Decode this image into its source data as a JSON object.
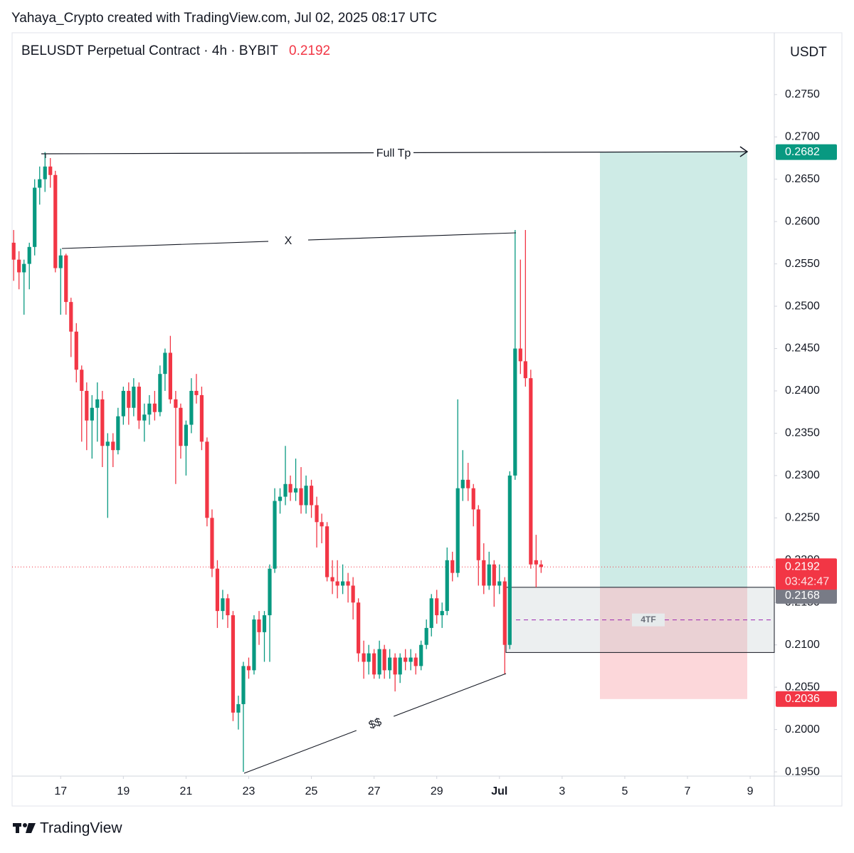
{
  "header": {
    "credit": "Yahaya_Crypto created with TradingView.com, Jul 02, 2025 08:17 UTC",
    "brand": "TradingView"
  },
  "chart_data": {
    "type": "candlestick",
    "title": "BELUSDT Perpetual Contract · 4h · BYBIT",
    "last_price": 0.2192,
    "currency": "USDT",
    "up_color": "#089981",
    "down_color": "#f23645",
    "x": [
      15.5,
      15.67,
      15.83,
      16,
      16.17,
      16.33,
      16.5,
      16.67,
      16.83,
      17,
      17.17,
      17.33,
      17.5,
      17.67,
      17.83,
      18,
      18.17,
      18.33,
      18.5,
      18.67,
      18.83,
      19,
      19.17,
      19.33,
      19.5,
      19.67,
      19.83,
      20,
      20.17,
      20.33,
      20.5,
      20.67,
      20.83,
      21,
      21.17,
      21.33,
      21.5,
      21.67,
      21.83,
      22,
      22.17,
      22.33,
      22.5,
      22.67,
      22.83,
      23,
      23.17,
      23.33,
      23.5,
      23.67,
      23.83,
      24,
      24.17,
      24.33,
      24.5,
      24.67,
      24.83,
      25,
      25.17,
      25.33,
      25.5,
      25.67,
      25.83,
      26,
      26.17,
      26.33,
      26.5,
      26.67,
      26.83,
      27,
      27.17,
      27.33,
      27.5,
      27.67,
      27.83,
      28,
      28.17,
      28.33,
      28.5,
      28.67,
      28.83,
      29,
      29.17,
      29.33,
      29.5,
      29.67,
      29.83,
      30,
      30.17,
      30.33,
      30.5,
      30.67,
      30.83,
      31,
      31.17,
      31.33,
      31.5,
      31.67,
      31.83,
      32,
      32.17,
      32.33
    ],
    "open": [
      0.2575,
      0.2555,
      0.254,
      0.255,
      0.257,
      0.264,
      0.265,
      0.2665,
      0.2655,
      0.2545,
      0.256,
      0.2505,
      0.247,
      0.2425,
      0.24,
      0.2365,
      0.238,
      0.239,
      0.2335,
      0.234,
      0.233,
      0.237,
      0.24,
      0.238,
      0.2405,
      0.2365,
      0.2372,
      0.2385,
      0.2375,
      0.242,
      0.2445,
      0.239,
      0.238,
      0.2335,
      0.236,
      0.24,
      0.2395,
      0.234,
      0.225,
      0.219,
      0.214,
      0.2155,
      0.2135,
      0.202,
      0.203,
      0.2075,
      0.207,
      0.213,
      0.2115,
      0.2135,
      0.219,
      0.227,
      0.2275,
      0.229,
      0.228,
      0.2285,
      0.2265,
      0.2288,
      0.2265,
      0.2245,
      0.224,
      0.218,
      0.2175,
      0.217,
      0.2175,
      0.217,
      0.215,
      0.209,
      0.208,
      0.209,
      0.2065,
      0.2095,
      0.207,
      0.2085,
      0.2065,
      0.2085,
      0.208,
      0.2085,
      0.2075,
      0.21,
      0.212,
      0.2155,
      0.2135,
      0.214,
      0.22,
      0.2185,
      0.2285,
      0.2295,
      0.2285,
      0.226,
      0.22,
      0.217,
      0.2195,
      0.217,
      0.2175,
      0.21,
      0.23,
      0.245,
      0.2435,
      0.2415,
      0.22,
      0.2195
    ],
    "high": [
      0.259,
      0.2565,
      0.2555,
      0.2575,
      0.265,
      0.2665,
      0.2682,
      0.2675,
      0.266,
      0.2568,
      0.2562,
      0.251,
      0.248,
      0.243,
      0.241,
      0.2395,
      0.241,
      0.24,
      0.235,
      0.235,
      0.238,
      0.2405,
      0.241,
      0.2415,
      0.241,
      0.2385,
      0.2395,
      0.24,
      0.243,
      0.245,
      0.2465,
      0.24,
      0.2385,
      0.2365,
      0.2415,
      0.242,
      0.2405,
      0.2345,
      0.226,
      0.22,
      0.2165,
      0.216,
      0.214,
      0.204,
      0.208,
      0.2085,
      0.2135,
      0.214,
      0.214,
      0.2195,
      0.2285,
      0.2285,
      0.2335,
      0.23,
      0.232,
      0.231,
      0.23,
      0.2295,
      0.2275,
      0.2255,
      0.2245,
      0.22,
      0.22,
      0.2195,
      0.2185,
      0.218,
      0.2155,
      0.2105,
      0.21,
      0.2095,
      0.2105,
      0.21,
      0.2095,
      0.209,
      0.209,
      0.2095,
      0.2095,
      0.209,
      0.2105,
      0.213,
      0.216,
      0.2165,
      0.215,
      0.2215,
      0.221,
      0.239,
      0.233,
      0.2315,
      0.229,
      0.2265,
      0.222,
      0.221,
      0.22,
      0.2195,
      0.218,
      0.2305,
      0.259,
      0.2555,
      0.259,
      0.2425,
      0.223,
      0.22
    ],
    "low": [
      0.253,
      0.252,
      0.249,
      0.252,
      0.256,
      0.262,
      0.2635,
      0.264,
      0.254,
      0.249,
      0.249,
      0.244,
      0.241,
      0.234,
      0.233,
      0.232,
      0.234,
      0.231,
      0.225,
      0.231,
      0.2325,
      0.236,
      0.236,
      0.237,
      0.2355,
      0.234,
      0.236,
      0.2365,
      0.237,
      0.24,
      0.2385,
      0.229,
      0.232,
      0.23,
      0.235,
      0.2385,
      0.233,
      0.224,
      0.218,
      0.212,
      0.213,
      0.212,
      0.201,
      0.2,
      0.195,
      0.206,
      0.2065,
      0.21,
      0.208,
      0.208,
      0.2185,
      0.2255,
      0.2265,
      0.227,
      0.227,
      0.2255,
      0.2255,
      0.225,
      0.2215,
      0.222,
      0.2175,
      0.216,
      0.2155,
      0.216,
      0.215,
      0.213,
      0.208,
      0.206,
      0.2065,
      0.206,
      0.206,
      0.206,
      0.206,
      0.2045,
      0.2055,
      0.207,
      0.207,
      0.2065,
      0.207,
      0.2095,
      0.211,
      0.2125,
      0.212,
      0.2135,
      0.2175,
      0.218,
      0.227,
      0.227,
      0.224,
      0.217,
      0.216,
      0.2165,
      0.2145,
      0.216,
      0.2065,
      0.2095,
      0.2295,
      0.242,
      0.2405,
      0.219,
      0.2168,
      0.2185
    ],
    "close": [
      0.2555,
      0.254,
      0.255,
      0.257,
      0.264,
      0.265,
      0.2665,
      0.2655,
      0.2545,
      0.256,
      0.2505,
      0.247,
      0.2425,
      0.24,
      0.2365,
      0.238,
      0.239,
      0.2335,
      0.234,
      0.233,
      0.237,
      0.24,
      0.238,
      0.2405,
      0.2365,
      0.2372,
      0.2385,
      0.2375,
      0.242,
      0.2445,
      0.239,
      0.238,
      0.2335,
      0.236,
      0.24,
      0.2395,
      0.234,
      0.225,
      0.219,
      0.214,
      0.2155,
      0.2135,
      0.202,
      0.203,
      0.2075,
      0.207,
      0.213,
      0.2115,
      0.2135,
      0.219,
      0.227,
      0.2275,
      0.229,
      0.228,
      0.2285,
      0.2265,
      0.2288,
      0.2265,
      0.2245,
      0.224,
      0.218,
      0.2175,
      0.217,
      0.2175,
      0.217,
      0.215,
      0.209,
      0.208,
      0.209,
      0.2065,
      0.2095,
      0.207,
      0.2085,
      0.2065,
      0.2085,
      0.208,
      0.2085,
      0.2075,
      0.21,
      0.212,
      0.2155,
      0.2135,
      0.214,
      0.22,
      0.2185,
      0.2285,
      0.2295,
      0.2285,
      0.226,
      0.22,
      0.217,
      0.2195,
      0.217,
      0.2175,
      0.21,
      0.23,
      0.245,
      0.2435,
      0.2415,
      0.2195,
      0.2195,
      0.2192
    ],
    "xlim": [
      15.45,
      39.77
    ],
    "xticks": [
      17,
      19,
      21,
      23,
      25,
      27,
      29,
      {
        "value": 31,
        "label": "Jul"
      },
      {
        "value": 33,
        "label": "3"
      },
      {
        "value": 35,
        "label": "5"
      },
      {
        "value": 37,
        "label": "7"
      },
      {
        "value": 39,
        "label": "9"
      }
    ],
    "ylim": [
      0.1945,
      0.2823
    ],
    "yticks": [
      {
        "value": 0.195,
        "label": "0.1950"
      },
      {
        "value": 0.2,
        "label": "0.2000"
      },
      {
        "value": 0.205,
        "label": "0.2050"
      },
      {
        "value": 0.21,
        "label": "0.2100"
      },
      {
        "value": 0.215,
        "label": "0.2150"
      },
      {
        "value": 0.22,
        "label": "0.2200"
      },
      {
        "value": 0.225,
        "label": "0.2250"
      },
      {
        "value": 0.23,
        "label": "0.2300"
      },
      {
        "value": 0.235,
        "label": "0.2350"
      },
      {
        "value": 0.24,
        "label": "0.2400"
      },
      {
        "value": 0.245,
        "label": "0.2450"
      },
      {
        "value": 0.25,
        "label": "0.2500"
      },
      {
        "value": 0.255,
        "label": "0.2550"
      },
      {
        "value": 0.26,
        "label": "0.2600"
      },
      {
        "value": 0.265,
        "label": "0.2650"
      },
      {
        "value": 0.27,
        "label": "0.2700"
      },
      {
        "value": 0.275,
        "label": "0.2750"
      }
    ],
    "annotations": [
      "Full Tp",
      "X",
      "$$",
      "4TF"
    ],
    "position": {
      "target": 0.2682,
      "entry": 0.2168,
      "stop": 0.2036
    },
    "zone": {
      "top": 0.2168,
      "bottom": 0.2091
    },
    "countdown": "03:42:47",
    "grid": false
  }
}
